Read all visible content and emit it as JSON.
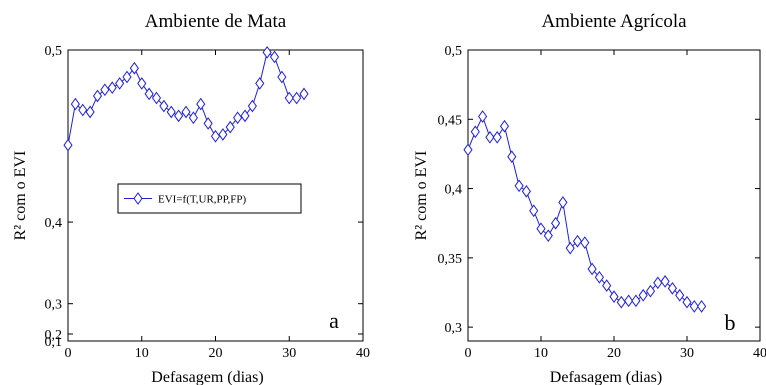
{
  "chart_data": [
    {
      "type": "line",
      "title": "Ambiente de Mata",
      "xlabel": "Defasagem (dias)",
      "ylabel": "R² com o EVI",
      "panel_label": "a",
      "xlim": [
        0,
        40
      ],
      "ylim": [
        0.1,
        0.5
      ],
      "xticks": [
        0,
        10,
        20,
        30,
        40
      ],
      "xtick_labels": [
        "0",
        "10",
        "20",
        "30",
        "40"
      ],
      "yticks": [
        0.1,
        0.2,
        0.3,
        0.4,
        0.5
      ],
      "ytick_labels": [
        "0,1",
        "0,2",
        "0,3",
        "0,4",
        "0,5"
      ],
      "y_scale": "power",
      "y_scale_exponent": 4,
      "grid": false,
      "legend": {
        "position": "center-left",
        "entries": [
          "EVI=f(T,UR,PP,FP)"
        ]
      },
      "series": [
        {
          "name": "EVI=f(T,UR,PP,FP)",
          "color": "#1f1fd6",
          "marker": "diamond",
          "x": [
            0,
            1,
            2,
            3,
            4,
            5,
            6,
            7,
            8,
            9,
            10,
            11,
            12,
            13,
            14,
            15,
            16,
            17,
            18,
            19,
            20,
            21,
            22,
            23,
            24,
            25,
            26,
            27,
            28,
            29,
            30,
            31,
            32
          ],
          "values": [
            0.453,
            0.475,
            0.472,
            0.471,
            0.479,
            0.482,
            0.483,
            0.485,
            0.488,
            0.492,
            0.485,
            0.48,
            0.478,
            0.474,
            0.471,
            0.469,
            0.471,
            0.468,
            0.475,
            0.465,
            0.458,
            0.459,
            0.463,
            0.468,
            0.469,
            0.474,
            0.485,
            0.499,
            0.497,
            0.488,
            0.478,
            0.478,
            0.48
          ]
        }
      ]
    },
    {
      "type": "line",
      "title": "Ambiente Agrícola",
      "xlabel": "Defasagem (dias)",
      "ylabel": "R² com o EVI",
      "panel_label": "b",
      "xlim": [
        0,
        40
      ],
      "ylim": [
        0.29,
        0.5
      ],
      "xticks": [
        0,
        10,
        20,
        30,
        40
      ],
      "xtick_labels": [
        "0",
        "10",
        "20",
        "30",
        "40"
      ],
      "yticks": [
        0.3,
        0.35,
        0.4,
        0.45,
        0.5
      ],
      "ytick_labels": [
        "0,3",
        "0,35",
        "0,4",
        "0,45",
        "0,5"
      ],
      "y_scale": "linear",
      "grid": false,
      "series": [
        {
          "color": "#1f1fd6",
          "marker": "diamond",
          "x": [
            0,
            1,
            2,
            3,
            4,
            5,
            6,
            7,
            8,
            9,
            10,
            11,
            12,
            13,
            14,
            15,
            16,
            17,
            18,
            19,
            20,
            21,
            22,
            23,
            24,
            25,
            26,
            27,
            28,
            29,
            30,
            31,
            32
          ],
          "values": [
            0.428,
            0.441,
            0.452,
            0.437,
            0.437,
            0.445,
            0.423,
            0.402,
            0.398,
            0.384,
            0.371,
            0.366,
            0.375,
            0.39,
            0.357,
            0.362,
            0.361,
            0.342,
            0.336,
            0.33,
            0.322,
            0.318,
            0.319,
            0.319,
            0.323,
            0.326,
            0.332,
            0.333,
            0.328,
            0.323,
            0.318,
            0.315,
            0.315
          ]
        }
      ]
    }
  ]
}
